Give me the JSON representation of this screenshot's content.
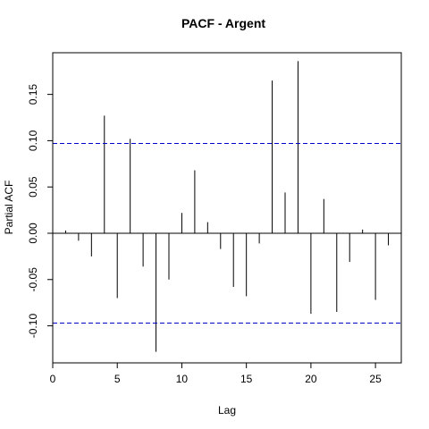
{
  "chart_data": {
    "type": "bar",
    "title": "PACF - Argent",
    "xlabel": "Lag",
    "ylabel": "Partial ACF",
    "xlim": [
      0,
      27
    ],
    "ylim": [
      -0.14,
      0.195
    ],
    "x_ticks": [
      0,
      5,
      10,
      15,
      20,
      25
    ],
    "y_ticks": [
      -0.1,
      -0.05,
      0.0,
      0.05,
      0.1,
      0.15
    ],
    "y_tick_labels": [
      "-0.10",
      "-0.05",
      "0.00",
      "0.05",
      "0.10",
      "0.15"
    ],
    "confidence_limit": 0.097,
    "confidence_color": "#0000cc",
    "series": [
      {
        "lags": [
          1,
          2,
          3,
          4,
          5,
          6,
          7,
          8,
          9,
          10,
          11,
          12,
          13,
          14,
          15,
          16,
          17,
          18,
          19,
          20,
          21,
          22,
          23,
          24,
          25,
          26
        ],
        "values": [
          0.003,
          -0.008,
          -0.025,
          0.127,
          -0.07,
          0.102,
          -0.036,
          -0.128,
          -0.05,
          0.022,
          0.068,
          0.012,
          -0.017,
          -0.058,
          -0.068,
          -0.011,
          0.165,
          0.044,
          0.186,
          -0.087,
          0.037,
          -0.085,
          -0.031,
          0.004,
          -0.072,
          -0.013
        ]
      }
    ],
    "grid": false,
    "legend": "none"
  }
}
